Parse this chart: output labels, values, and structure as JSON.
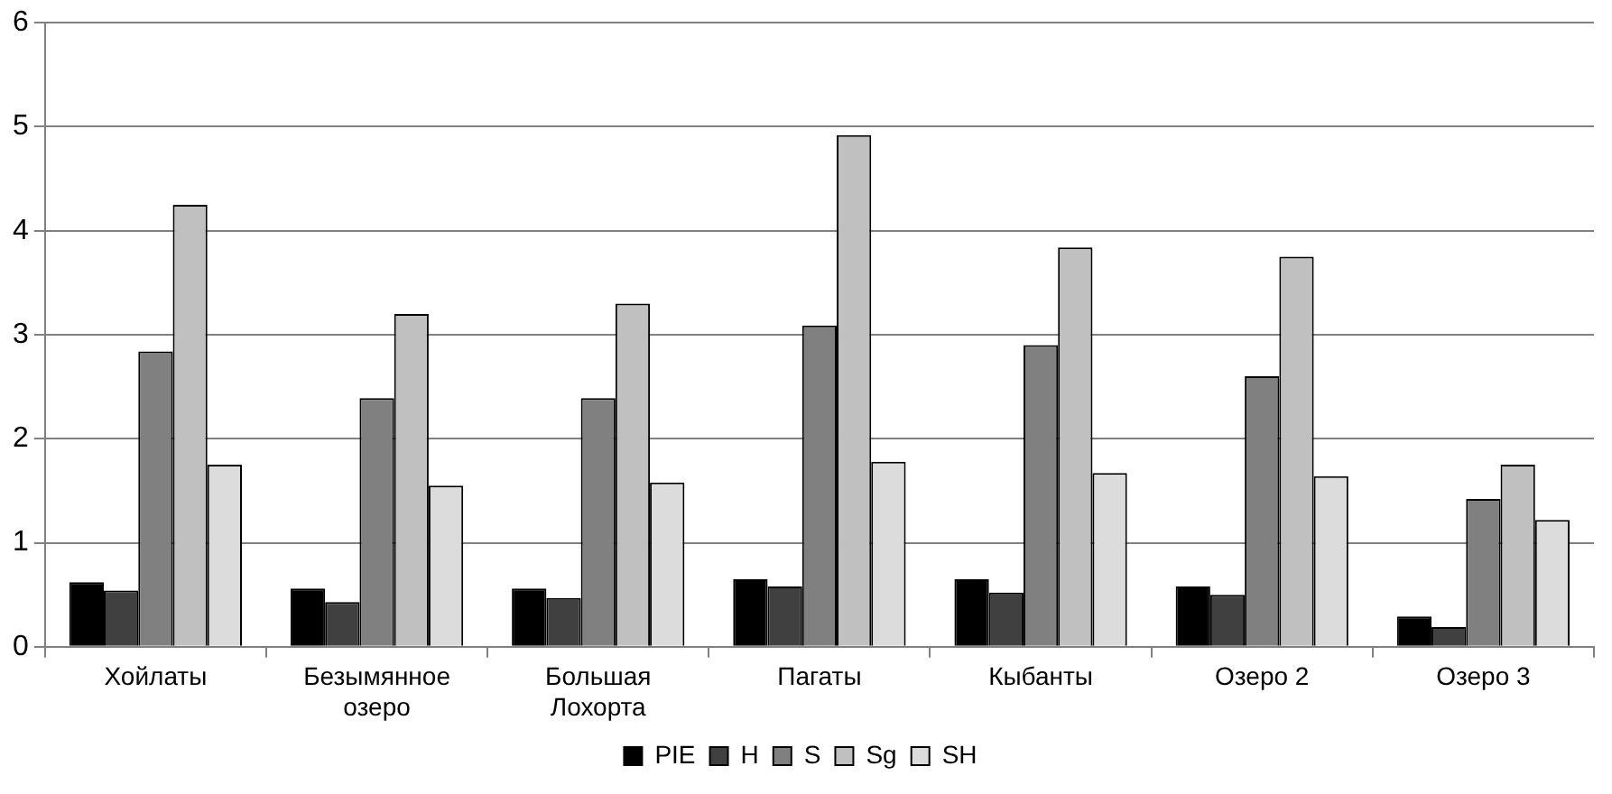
{
  "chart_data": {
    "type": "bar",
    "categories": [
      "Хойлаты",
      "Безымянное озеро",
      "Большая Лохорта",
      "Пагаты",
      "Кыбанты",
      "Озеро 2",
      "Озеро 3"
    ],
    "series": [
      {
        "name": "PIE",
        "color": "#000000",
        "values": [
          0.62,
          0.56,
          0.56,
          0.65,
          0.65,
          0.58,
          0.29
        ]
      },
      {
        "name": "H",
        "color": "#404040",
        "values": [
          0.54,
          0.43,
          0.47,
          0.58,
          0.52,
          0.5,
          0.19
        ]
      },
      {
        "name": "S",
        "color": "#808080",
        "values": [
          2.84,
          2.39,
          2.39,
          3.09,
          2.9,
          2.6,
          1.42
        ]
      },
      {
        "name": "Sg",
        "color": "#c0c0c0",
        "values": [
          4.25,
          3.2,
          3.3,
          4.92,
          3.84,
          3.75,
          1.75
        ]
      },
      {
        "name": "SH",
        "color": "#dcdcdc",
        "values": [
          1.75,
          1.55,
          1.58,
          1.78,
          1.67,
          1.64,
          1.22
        ]
      }
    ],
    "ylim": [
      0,
      6
    ],
    "yticks": [
      0,
      1,
      2,
      3,
      4,
      5,
      6
    ],
    "grid": "y",
    "legend": "bottom"
  }
}
